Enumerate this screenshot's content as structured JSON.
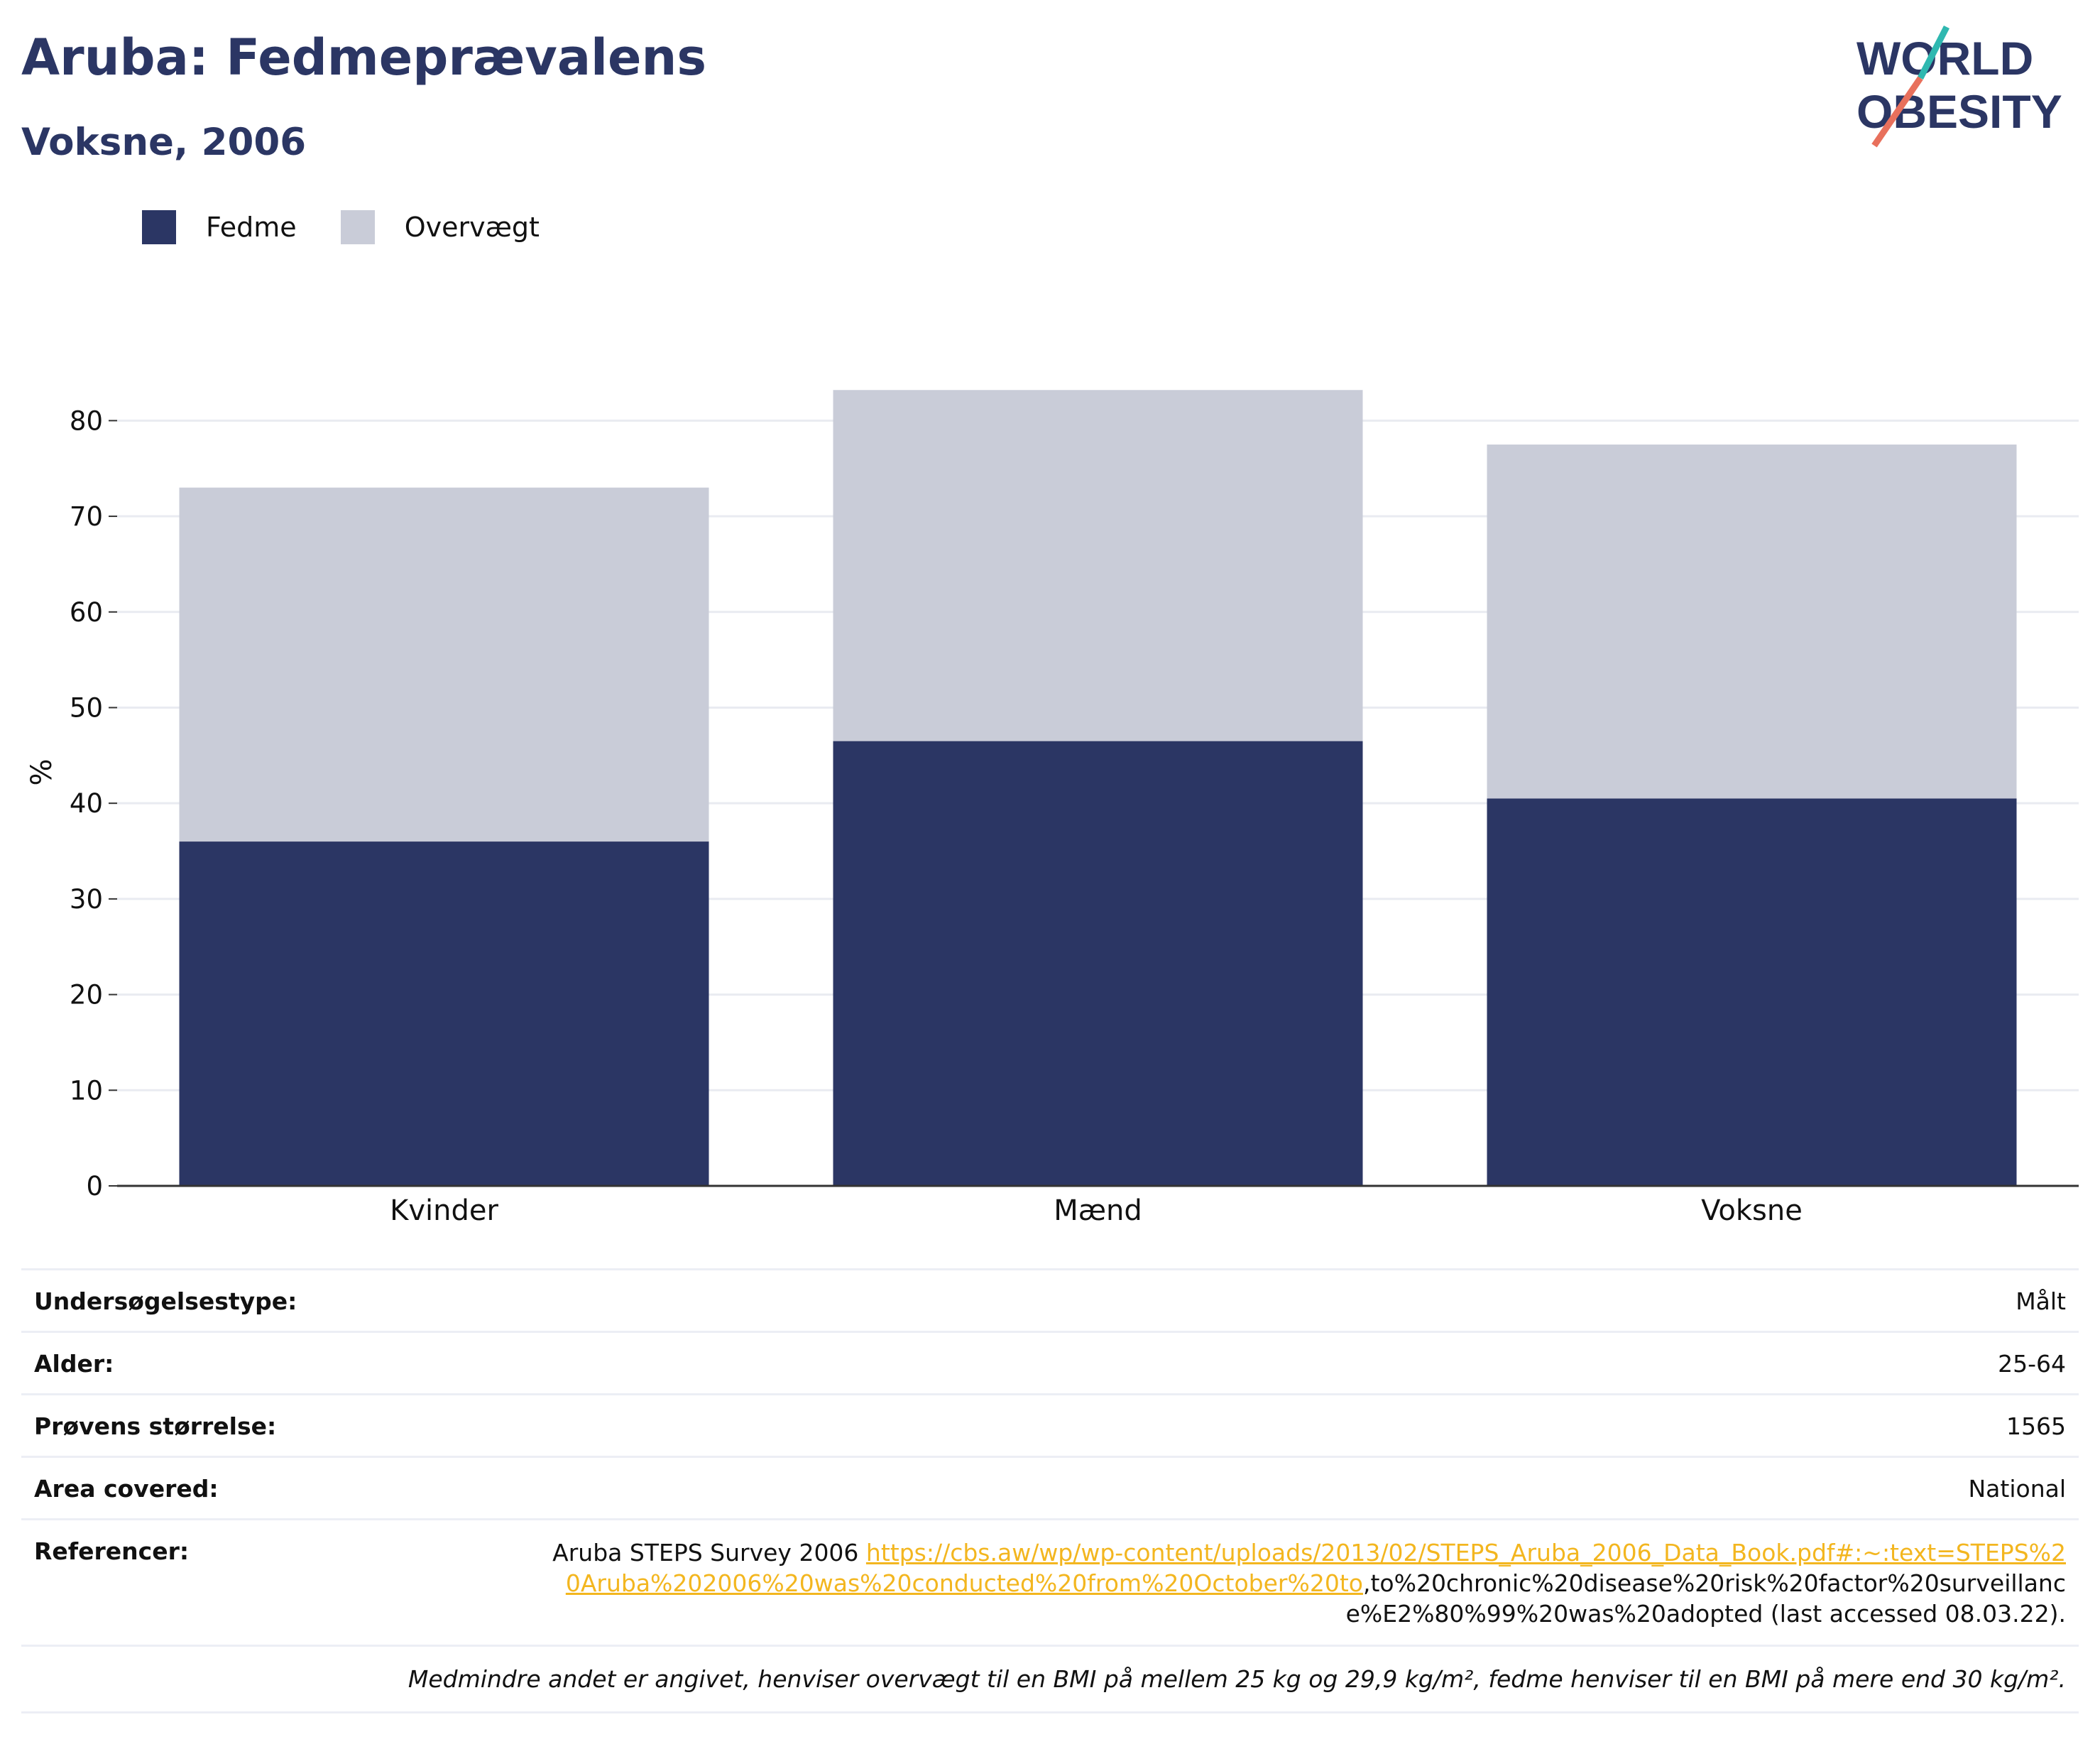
{
  "header": {
    "title": "Aruba: Fedmeprævalens",
    "subtitle": "Voksne, 2006"
  },
  "logo": {
    "line1": "WORLD",
    "line2": "OBESITY"
  },
  "colors": {
    "obesity": "#2b3664",
    "overweight": "#c9ccd8",
    "title": "#2b3664",
    "link": "#f3b61f",
    "accent_teal": "#2fb8b0",
    "accent_coral": "#e8705c"
  },
  "chart_data": {
    "type": "bar",
    "stacked": true,
    "categories": [
      "Kvinder",
      "Mænd",
      "Voksne"
    ],
    "series": [
      {
        "name": "Fedme",
        "values": [
          36.0,
          46.5,
          40.5
        ]
      },
      {
        "name": "Overvægt",
        "values": [
          37.0,
          36.7,
          37.0
        ]
      }
    ],
    "ylabel": "%",
    "xlabel": "",
    "ylim": [
      0,
      85
    ],
    "yticks": [
      0,
      10,
      20,
      30,
      40,
      50,
      60,
      70,
      80
    ],
    "grid": true,
    "legend_position": "top-left"
  },
  "info": {
    "survey_type": {
      "label": "Undersøgelsestype:",
      "value": "Målt"
    },
    "age": {
      "label": "Alder:",
      "value": "25-64"
    },
    "sample_size": {
      "label": "Prøvens størrelse:",
      "value": "1565"
    },
    "area": {
      "label": "Area covered:",
      "value": "National"
    },
    "references": {
      "label": "Referencer:",
      "text_before": "Aruba STEPS Survey 2006 ",
      "link": "https://cbs.aw/wp/wp-content/uploads/2013/02/STEPS_Aruba_2006_Data_Book.pdf#:~:text=STEPS%20Aruba%202006%20was%20conducted%20from%20October%20to",
      "text_after": ",to%20chronic%20disease%20risk%20factor%20surveillance%E2%80%99%20was%20adopted (last accessed 08.03.22)."
    },
    "footnote": "Medmindre andet er angivet, henviser overvægt til en BMI på mellem 25 kg og 29,9 kg/m², fedme henviser til en BMI på mere end 30 kg/m²."
  }
}
